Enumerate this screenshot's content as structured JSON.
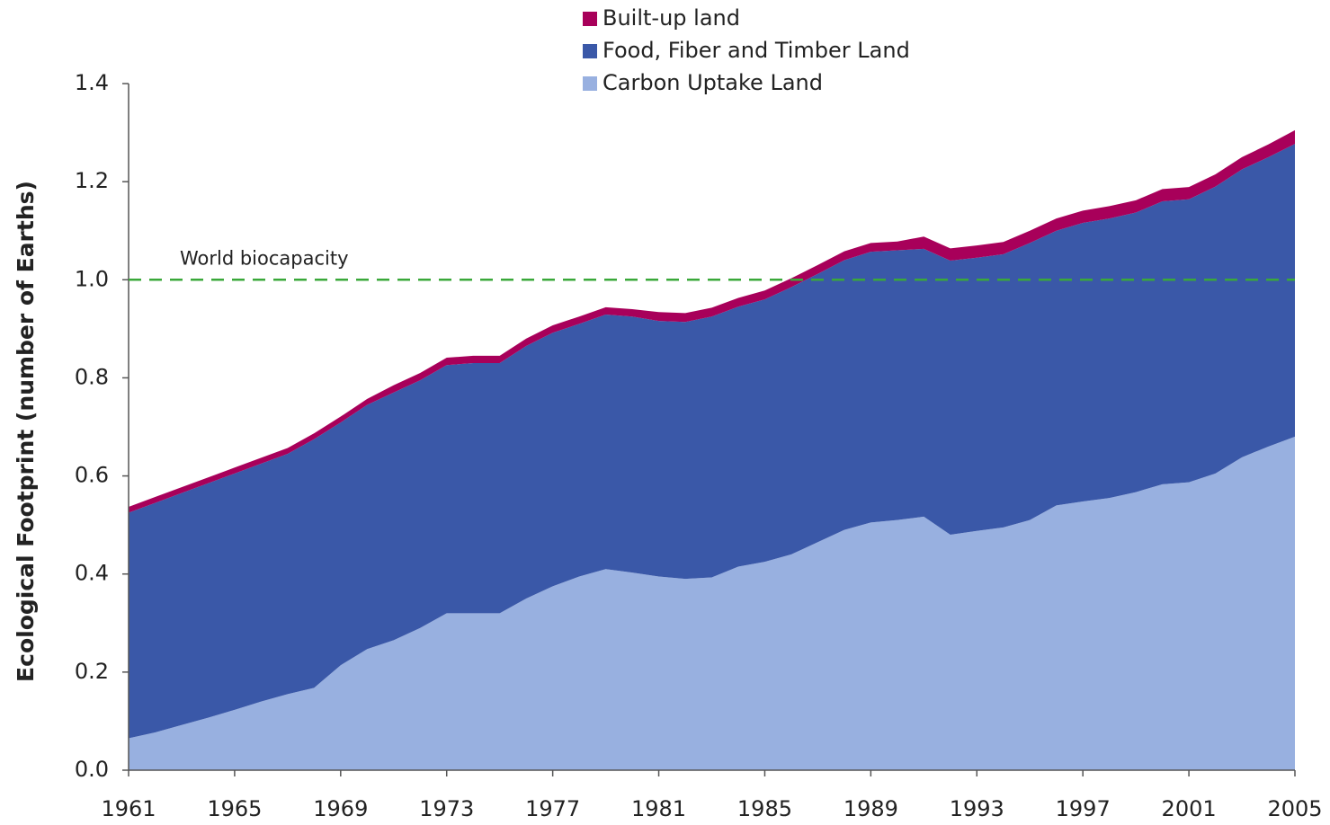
{
  "chart_data": {
    "type": "stacked_area",
    "y_label": "Ecological Footprint (number of Earths)",
    "x": [
      1961,
      1962,
      1963,
      1964,
      1965,
      1966,
      1967,
      1968,
      1969,
      1970,
      1971,
      1972,
      1973,
      1974,
      1975,
      1976,
      1977,
      1978,
      1979,
      1980,
      1981,
      1982,
      1983,
      1984,
      1985,
      1986,
      1987,
      1988,
      1989,
      1990,
      1991,
      1992,
      1993,
      1994,
      1995,
      1996,
      1997,
      1998,
      1999,
      2000,
      2001,
      2002,
      2003,
      2004,
      2005
    ],
    "xlim": [
      1961,
      2005
    ],
    "xticks": [
      1961,
      1965,
      1969,
      1973,
      1977,
      1981,
      1985,
      1989,
      1993,
      1997,
      2001,
      2005
    ],
    "ylim": [
      0,
      1.4
    ],
    "yticks": [
      {
        "value": 0,
        "label": "0.0"
      },
      {
        "value": 0.2,
        "label": "0.2"
      },
      {
        "value": 0.4,
        "label": "0.4"
      },
      {
        "value": 0.6,
        "label": "0.6"
      },
      {
        "value": 0.8,
        "label": "0.8"
      },
      {
        "value": 1,
        "label": "1.0"
      },
      {
        "value": 1.2,
        "label": "1.2"
      },
      {
        "value": 1.4,
        "label": "1.4"
      }
    ],
    "series": [
      {
        "name": "Carbon Uptake Land",
        "color": "#98b0e0",
        "values": [
          0.065,
          0.077,
          0.092,
          0.107,
          0.123,
          0.14,
          0.155,
          0.168,
          0.214,
          0.247,
          0.265,
          0.29,
          0.32,
          0.32,
          0.32,
          0.35,
          0.375,
          0.395,
          0.41,
          0.403,
          0.395,
          0.39,
          0.393,
          0.415,
          0.425,
          0.44,
          0.465,
          0.49,
          0.505,
          0.51,
          0.517,
          0.48,
          0.488,
          0.495,
          0.51,
          0.54,
          0.548,
          0.555,
          0.567,
          0.583,
          0.587,
          0.605,
          0.638,
          0.66,
          0.68
        ]
      },
      {
        "name": "Food, Fiber and Timber Land",
        "color": "#3a58a8",
        "values": [
          0.46,
          0.468,
          0.473,
          0.478,
          0.482,
          0.485,
          0.49,
          0.507,
          0.495,
          0.498,
          0.505,
          0.505,
          0.506,
          0.51,
          0.51,
          0.515,
          0.517,
          0.515,
          0.519,
          0.522,
          0.521,
          0.524,
          0.532,
          0.53,
          0.535,
          0.545,
          0.547,
          0.55,
          0.552,
          0.55,
          0.546,
          0.559,
          0.557,
          0.557,
          0.565,
          0.56,
          0.568,
          0.57,
          0.57,
          0.577,
          0.577,
          0.585,
          0.587,
          0.59,
          0.597
        ]
      },
      {
        "name": "Built-up land",
        "color": "#a8005a",
        "values": [
          0.012,
          0.012,
          0.012,
          0.012,
          0.012,
          0.012,
          0.012,
          0.012,
          0.012,
          0.012,
          0.015,
          0.015,
          0.015,
          0.015,
          0.015,
          0.015,
          0.015,
          0.015,
          0.015,
          0.015,
          0.018,
          0.018,
          0.018,
          0.018,
          0.018,
          0.018,
          0.018,
          0.018,
          0.018,
          0.018,
          0.025,
          0.025,
          0.025,
          0.025,
          0.025,
          0.025,
          0.025,
          0.025,
          0.025,
          0.025,
          0.025,
          0.025,
          0.025,
          0.026,
          0.028
        ]
      }
    ],
    "reference_line": {
      "value": 1,
      "label": "World biocapacity",
      "color": "#3aa83a"
    },
    "legend": "top"
  }
}
